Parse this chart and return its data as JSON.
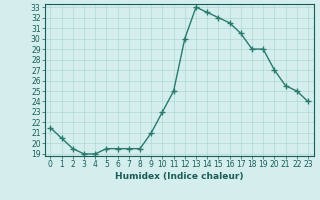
{
  "x": [
    0,
    1,
    2,
    3,
    4,
    5,
    6,
    7,
    8,
    9,
    10,
    11,
    12,
    13,
    14,
    15,
    16,
    17,
    18,
    19,
    20,
    21,
    22,
    23
  ],
  "y": [
    21.5,
    20.5,
    19.5,
    19.0,
    19.0,
    19.5,
    19.5,
    19.5,
    19.5,
    21.0,
    23.0,
    25.0,
    30.0,
    33.0,
    32.5,
    32.0,
    31.5,
    30.5,
    29.0,
    29.0,
    27.0,
    25.5,
    25.0,
    24.0
  ],
  "line_color": "#2a7a6e",
  "marker": "+",
  "marker_size": 4,
  "bg_color": "#d4eeee",
  "grid_color": "#b0d8d4",
  "xlabel": "Humidex (Indice chaleur)",
  "ylim": [
    19,
    33
  ],
  "xlim": [
    -0.5,
    23.5
  ],
  "yticks": [
    19,
    20,
    21,
    22,
    23,
    24,
    25,
    26,
    27,
    28,
    29,
    30,
    31,
    32,
    33
  ],
  "xticks": [
    0,
    1,
    2,
    3,
    4,
    5,
    6,
    7,
    8,
    9,
    10,
    11,
    12,
    13,
    14,
    15,
    16,
    17,
    18,
    19,
    20,
    21,
    22,
    23
  ],
  "tick_color": "#1a5c58",
  "axis_color": "#1a5c58",
  "font_color": "#1a5c58",
  "tick_fontsize": 5.5,
  "xlabel_fontsize": 6.5,
  "linewidth": 1.0,
  "marker_color": "#2a7a6e"
}
